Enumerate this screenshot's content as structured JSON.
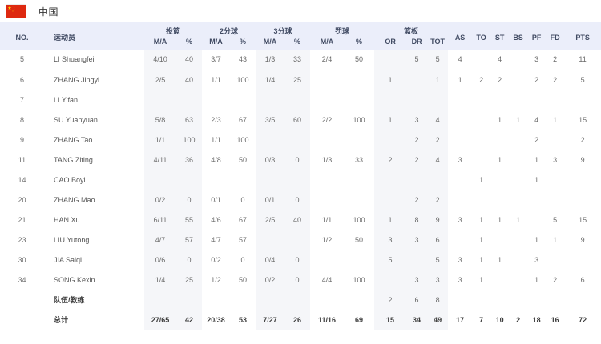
{
  "header": {
    "team_name": "中国",
    "flag_icon": "china-flag",
    "flag_colors": {
      "field": "#de2910",
      "stars": "#ffde00"
    }
  },
  "colors": {
    "thead_bg": "#ebeefa",
    "thead_text": "#414b63",
    "band_bg": "#f5f6f9",
    "row_border": "#eeeef3",
    "body_text": "#6b6b6b"
  },
  "table": {
    "header": {
      "row1": [
        {
          "key": "no",
          "label": "NO.",
          "rowspan": 2
        },
        {
          "key": "player",
          "label": "运动员",
          "rowspan": 2,
          "align": "left"
        },
        {
          "key": "fg",
          "label": "投篮",
          "colspan": 2
        },
        {
          "key": "2pt",
          "label": "2分球",
          "colspan": 2
        },
        {
          "key": "3pt",
          "label": "3分球",
          "colspan": 2
        },
        {
          "key": "ft",
          "label": "罚球",
          "colspan": 2
        },
        {
          "key": "reb",
          "label": "篮板",
          "colspan": 3
        },
        {
          "key": "as",
          "label": "AS",
          "rowspan": 2
        },
        {
          "key": "to",
          "label": "TO",
          "rowspan": 2
        },
        {
          "key": "st",
          "label": "ST",
          "rowspan": 2
        },
        {
          "key": "bs",
          "label": "BS",
          "rowspan": 2
        },
        {
          "key": "pf",
          "label": "PF",
          "rowspan": 2
        },
        {
          "key": "fd",
          "label": "FD",
          "rowspan": 2
        },
        {
          "key": "pts",
          "label": "PTS",
          "rowspan": 2
        }
      ],
      "row2": [
        {
          "key": "fg-ma",
          "label": "M/A"
        },
        {
          "key": "fg-pct",
          "label": "%"
        },
        {
          "key": "2pt-ma",
          "label": "M/A"
        },
        {
          "key": "2pt-pct",
          "label": "%"
        },
        {
          "key": "3pt-ma",
          "label": "M/A"
        },
        {
          "key": "3pt-pct",
          "label": "%"
        },
        {
          "key": "ft-ma",
          "label": "M/A"
        },
        {
          "key": "ft-pct",
          "label": "%"
        },
        {
          "key": "or",
          "label": "OR"
        },
        {
          "key": "dr",
          "label": "DR"
        },
        {
          "key": "tot",
          "label": "TOT"
        }
      ]
    },
    "players": [
      {
        "no": "5",
        "name": "LI Shuangfei",
        "stats": [
          "4/10",
          "40",
          "3/7",
          "43",
          "1/3",
          "33",
          "2/4",
          "50",
          "",
          "5",
          "5",
          "4",
          "",
          "4",
          "",
          "3",
          "2",
          "11"
        ]
      },
      {
        "no": "6",
        "name": "ZHANG Jingyi",
        "stats": [
          "2/5",
          "40",
          "1/1",
          "100",
          "1/4",
          "25",
          "",
          "",
          "1",
          "",
          "1",
          "1",
          "2",
          "2",
          "",
          "2",
          "2",
          "5"
        ]
      },
      {
        "no": "7",
        "name": "LI Yifan",
        "stats": [
          "",
          "",
          "",
          "",
          "",
          "",
          "",
          "",
          "",
          "",
          "",
          "",
          "",
          "",
          "",
          "",
          "",
          ""
        ]
      },
      {
        "no": "8",
        "name": "SU Yuanyuan",
        "stats": [
          "5/8",
          "63",
          "2/3",
          "67",
          "3/5",
          "60",
          "2/2",
          "100",
          "1",
          "3",
          "4",
          "",
          "",
          "1",
          "1",
          "4",
          "1",
          "15"
        ]
      },
      {
        "no": "9",
        "name": "ZHANG Tao",
        "stats": [
          "1/1",
          "100",
          "1/1",
          "100",
          "",
          "",
          "",
          "",
          "",
          "2",
          "2",
          "",
          "",
          "",
          "",
          "2",
          "",
          "2"
        ]
      },
      {
        "no": "11",
        "name": "TANG Ziting",
        "stats": [
          "4/11",
          "36",
          "4/8",
          "50",
          "0/3",
          "0",
          "1/3",
          "33",
          "2",
          "2",
          "4",
          "3",
          "",
          "1",
          "",
          "1",
          "3",
          "9"
        ]
      },
      {
        "no": "14",
        "name": "CAO Boyi",
        "stats": [
          "",
          "",
          "",
          "",
          "",
          "",
          "",
          "",
          "",
          "",
          "",
          "",
          "1",
          "",
          "",
          "1",
          "",
          ""
        ]
      },
      {
        "no": "20",
        "name": "ZHANG Mao",
        "stats": [
          "0/2",
          "0",
          "0/1",
          "0",
          "0/1",
          "0",
          "",
          "",
          "",
          "2",
          "2",
          "",
          "",
          "",
          "",
          "",
          "",
          ""
        ]
      },
      {
        "no": "21",
        "name": "HAN Xu",
        "stats": [
          "6/11",
          "55",
          "4/6",
          "67",
          "2/5",
          "40",
          "1/1",
          "100",
          "1",
          "8",
          "9",
          "3",
          "1",
          "1",
          "1",
          "",
          "5",
          "15"
        ]
      },
      {
        "no": "23",
        "name": "LIU Yutong",
        "stats": [
          "4/7",
          "57",
          "4/7",
          "57",
          "",
          "",
          "1/2",
          "50",
          "3",
          "3",
          "6",
          "",
          "1",
          "",
          "",
          "1",
          "1",
          "9"
        ]
      },
      {
        "no": "30",
        "name": "JIA Saiqi",
        "stats": [
          "0/6",
          "0",
          "0/2",
          "0",
          "0/4",
          "0",
          "",
          "",
          "5",
          "",
          "5",
          "3",
          "1",
          "1",
          "",
          "3",
          "",
          ""
        ]
      },
      {
        "no": "34",
        "name": "SONG Kexin",
        "stats": [
          "1/4",
          "25",
          "1/2",
          "50",
          "0/2",
          "0",
          "4/4",
          "100",
          "",
          "3",
          "3",
          "3",
          "1",
          "",
          "",
          "1",
          "2",
          "6"
        ]
      }
    ],
    "team_row": {
      "name": "队伍/教练",
      "stats": [
        "",
        "",
        "",
        "",
        "",
        "",
        "",
        "",
        "2",
        "6",
        "8",
        "",
        "",
        "",
        "",
        "",
        "",
        ""
      ]
    },
    "total_row": {
      "name": "总计",
      "stats": [
        "27/65",
        "42",
        "20/38",
        "53",
        "7/27",
        "26",
        "11/16",
        "69",
        "15",
        "34",
        "49",
        "17",
        "7",
        "10",
        "2",
        "18",
        "16",
        "72"
      ]
    }
  }
}
